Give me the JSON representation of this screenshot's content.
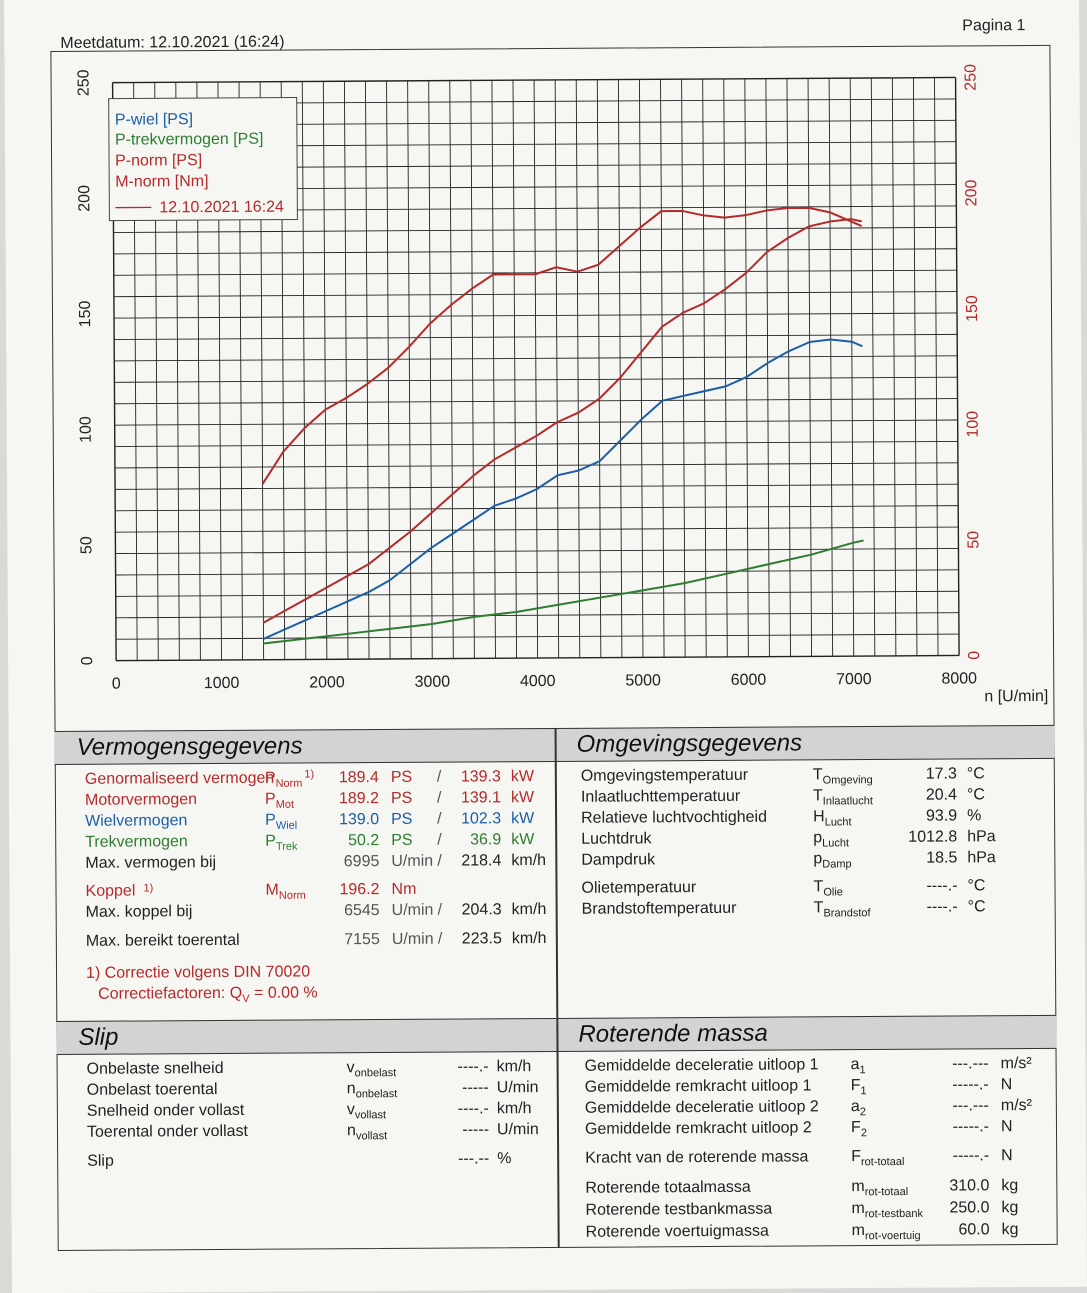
{
  "header": {
    "date_label": "Meetdatum: 12.10.2021 (16:24)",
    "page_label": "Pagina 1"
  },
  "chart_data": {
    "type": "line",
    "xlabel": "n [U/min]",
    "xlim": [
      0,
      8000
    ],
    "x_ticks": [
      "0",
      "1000",
      "2000",
      "3000",
      "4000",
      "5000",
      "6000",
      "7000",
      "8000"
    ],
    "ylim_left": [
      0,
      250
    ],
    "ylim_right": [
      0,
      250
    ],
    "y_ticks_left": [
      "0",
      "50",
      "100",
      "150",
      "200",
      "250"
    ],
    "y_ticks_right": [
      "0",
      "50",
      "100",
      "150",
      "200",
      "250"
    ],
    "legend": [
      "P-wiel [PS]",
      "P-trekvermogen [PS]",
      "P-norm [PS]",
      "M-norm [Nm]",
      "12.10.2021 16:24"
    ],
    "legend_colors": [
      "#1c5fa6",
      "#2e7d32",
      "#b52a2a",
      "#b52a2a",
      "#b52a2a"
    ],
    "grid": true,
    "series": [
      {
        "name": "M-norm [Nm]",
        "color": "#b52a2a",
        "x": [
          1400,
          1600,
          1800,
          2000,
          2200,
          2400,
          2600,
          2800,
          3000,
          3200,
          3400,
          3600,
          3800,
          4000,
          4200,
          4400,
          4600,
          4800,
          5000,
          5200,
          5400,
          5600,
          5800,
          6000,
          6200,
          6400,
          6600,
          6800,
          7000,
          7100
        ],
        "y": [
          76,
          90,
          100,
          108,
          113,
          119,
          126,
          135,
          145,
          153,
          160,
          166,
          166,
          166,
          169,
          167,
          170,
          178,
          186,
          193,
          193,
          191,
          190,
          191,
          193,
          194,
          194,
          192,
          188,
          186
        ]
      },
      {
        "name": "P-norm [PS]",
        "color": "#b52a2a",
        "x": [
          1400,
          1600,
          1800,
          2000,
          2200,
          2400,
          2600,
          2800,
          3000,
          3200,
          3400,
          3600,
          3800,
          4000,
          4200,
          4400,
          4600,
          4800,
          5000,
          5200,
          5400,
          5600,
          5800,
          6000,
          6200,
          6400,
          6600,
          6800,
          7000,
          7100
        ],
        "y": [
          16,
          21,
          26,
          31,
          36,
          41,
          48,
          55,
          63,
          71,
          79,
          86,
          91,
          96,
          102,
          106,
          112,
          121,
          132,
          143,
          149,
          153,
          159,
          166,
          175,
          181,
          186,
          188,
          189,
          188
        ]
      },
      {
        "name": "P-wiel [PS]",
        "color": "#1c5fa6",
        "x": [
          1400,
          1600,
          1800,
          2000,
          2200,
          2400,
          2600,
          2800,
          3000,
          3200,
          3400,
          3600,
          3800,
          4000,
          4200,
          4400,
          4600,
          4800,
          5000,
          5200,
          5400,
          5600,
          5800,
          6000,
          6200,
          6400,
          6600,
          6800,
          7000,
          7100
        ],
        "y": [
          9,
          13,
          17,
          21,
          25,
          29,
          34,
          41,
          48,
          54,
          60,
          66,
          69,
          73,
          79,
          81,
          85,
          94,
          103,
          111,
          113,
          115,
          117,
          121,
          127,
          132,
          136,
          137,
          136,
          134
        ]
      },
      {
        "name": "P-trekvermogen [PS]",
        "color": "#2e7d32",
        "x": [
          1400,
          1800,
          2200,
          2600,
          3000,
          3400,
          3800,
          4200,
          4600,
          5000,
          5400,
          5800,
          6200,
          6600,
          7000,
          7100
        ],
        "y": [
          7,
          9,
          11,
          13,
          15,
          18,
          20,
          23,
          26,
          29,
          32,
          36,
          40,
          44,
          49,
          50
        ]
      }
    ]
  },
  "vermogen": {
    "title": "Vermogensgegevens",
    "rows": [
      {
        "label": "Genormaliseerd vermogen",
        "sym": "P",
        "sub": "Norm",
        "note": "1)",
        "v1": "189.4",
        "u1": "PS",
        "sep": "/",
        "v2": "139.3",
        "u2": "kW"
      },
      {
        "label": "Motorvermogen",
        "sym": "P",
        "sub": "Mot",
        "v1": "189.2",
        "u1": "PS",
        "sep": "/",
        "v2": "139.1",
        "u2": "kW"
      },
      {
        "label": "Wielvermogen",
        "sym": "P",
        "sub": "Wiel",
        "v1": "139.0",
        "u1": "PS",
        "sep": "/",
        "v2": "102.3",
        "u2": "kW"
      },
      {
        "label": "Trekvermogen",
        "sym": "P",
        "sub": "Trek",
        "v1": "50.2",
        "u1": "PS",
        "sep": "/",
        "v2": "36.9",
        "u2": "kW"
      },
      {
        "label": "Max. vermogen bij",
        "v1": "6995",
        "u1": "U/min",
        "sep": "/",
        "v2": "218.4",
        "u2": "km/h"
      },
      {
        "label": "Koppel",
        "note": "1)",
        "sym": "M",
        "sub": "Norm",
        "v1": "196.2",
        "u1": "Nm"
      },
      {
        "label": "Max. koppel bij",
        "v1": "6545",
        "u1": "U/min",
        "sep": "/",
        "v2": "204.3",
        "u2": "km/h"
      },
      {
        "label": "Max. bereikt toerental",
        "v1": "7155",
        "u1": "U/min",
        "sep": "/",
        "v2": "223.5",
        "u2": "km/h"
      }
    ],
    "footnote1": "1) Correctie volgens DIN 70020",
    "footnote2_label": "Correctiefactoren: Q",
    "footnote2_sub": "V",
    "footnote2_value": "=   0.00 %"
  },
  "omgeving": {
    "title": "Omgevingsgegevens",
    "rows": [
      {
        "label": "Omgevingstemperatuur",
        "sym": "T",
        "sub": "Omgeving",
        "val": "17.3",
        "unit": "°C"
      },
      {
        "label": "Inlaatluchttemperatuur",
        "sym": "T",
        "sub": "Inlaatlucht",
        "val": "20.4",
        "unit": "°C"
      },
      {
        "label": "Relatieve luchtvochtigheid",
        "sym": "H",
        "sub": "Lucht",
        "val": "93.9",
        "unit": "%"
      },
      {
        "label": "Luchtdruk",
        "sym": "p",
        "sub": "Lucht",
        "val": "1012.8",
        "unit": "hPa"
      },
      {
        "label": "Dampdruk",
        "sym": "p",
        "sub": "Damp",
        "val": "18.5",
        "unit": "hPa"
      },
      {
        "label": "Olietemperatuur",
        "sym": "T",
        "sub": "Olie",
        "val": "----.-",
        "unit": "°C"
      },
      {
        "label": "Brandstoftemperatuur",
        "sym": "T",
        "sub": "Brandstof",
        "val": "----.-",
        "unit": "°C"
      }
    ]
  },
  "slip": {
    "title": "Slip",
    "rows": [
      {
        "label": "Onbelaste snelheid",
        "sym": "v",
        "sub": "onbelast",
        "val": "----.-",
        "unit": "km/h"
      },
      {
        "label": "Onbelast toerental",
        "sym": "n",
        "sub": "onbelast",
        "val": "-----",
        "unit": "U/min"
      },
      {
        "label": "Snelheid onder vollast",
        "sym": "v",
        "sub": "vollast",
        "val": "----.-",
        "unit": "km/h"
      },
      {
        "label": "Toerental onder vollast",
        "sym": "n",
        "sub": "vollast",
        "val": "-----",
        "unit": "U/min"
      },
      {
        "label": "Slip",
        "sym": "",
        "sub": "",
        "val": "---.--",
        "unit": "%"
      }
    ]
  },
  "roterend": {
    "title": "Roterende massa",
    "rows": [
      {
        "label": "Gemiddelde deceleratie uitloop 1",
        "sym": "a",
        "sub": "1",
        "val": "---.---",
        "unit": "m/s²"
      },
      {
        "label": "Gemiddelde remkracht uitloop 1",
        "sym": "F",
        "sub": "1",
        "val": "-----.-",
        "unit": "N"
      },
      {
        "label": "Gemiddelde deceleratie uitloop 2",
        "sym": "a",
        "sub": "2",
        "val": "---.---",
        "unit": "m/s²"
      },
      {
        "label": "Gemiddelde remkracht uitloop 2",
        "sym": "F",
        "sub": "2",
        "val": "-----.-",
        "unit": "N"
      },
      {
        "label": "Kracht van de roterende massa",
        "sym": "F",
        "sub": "rot-totaal",
        "val": "-----.-",
        "unit": "N"
      },
      {
        "label": "Roterende totaalmassa",
        "sym": "m",
        "sub": "rot-totaal",
        "val": "310.0",
        "unit": "kg"
      },
      {
        "label": "Roterende testbankmassa",
        "sym": "m",
        "sub": "rot-testbank",
        "val": "250.0",
        "unit": "kg"
      },
      {
        "label": "Roterende voertuigmassa",
        "sym": "m",
        "sub": "rot-voertuig",
        "val": "60.0",
        "unit": "kg"
      }
    ]
  }
}
